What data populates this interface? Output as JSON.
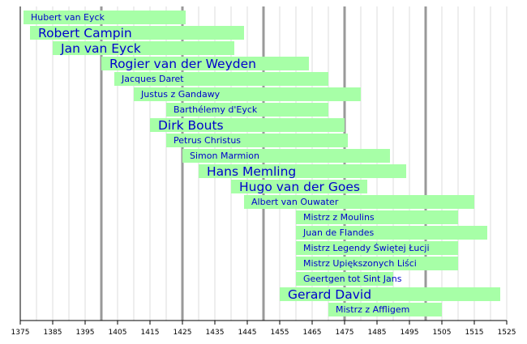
{
  "chart_data": {
    "type": "bar",
    "orientation": "timeline",
    "title": "",
    "xlabel": "",
    "ylabel": "",
    "xlim": [
      1375,
      1525
    ],
    "x_ticks": [
      1375,
      1385,
      1395,
      1405,
      1415,
      1425,
      1435,
      1445,
      1455,
      1465,
      1475,
      1485,
      1495,
      1505,
      1515,
      1525
    ],
    "major_gridlines": [
      1400,
      1425,
      1450,
      1475,
      1500
    ],
    "minor_gridline_step": 5,
    "bar_color": "#a7ffa7",
    "label_color": "#0000cc",
    "grid_major_color": "#999999",
    "grid_minor_color": "#dddddd",
    "bars": [
      {
        "name": "Hubert van Eyck",
        "start": 1376,
        "end": 1426,
        "emphasis": "small"
      },
      {
        "name": "Robert Campin",
        "start": 1378,
        "end": 1444,
        "emphasis": "large"
      },
      {
        "name": "Jan van Eyck",
        "start": 1385,
        "end": 1441,
        "emphasis": "large"
      },
      {
        "name": "Rogier van der Weyden",
        "start": 1400,
        "end": 1464,
        "emphasis": "large"
      },
      {
        "name": "Jacques Daret",
        "start": 1404,
        "end": 1470,
        "emphasis": "small"
      },
      {
        "name": "Justus z Gandawy",
        "start": 1410,
        "end": 1480,
        "emphasis": "small"
      },
      {
        "name": "Barthélemy d'Eyck",
        "start": 1420,
        "end": 1470,
        "emphasis": "small"
      },
      {
        "name": "Dirk Bouts",
        "start": 1415,
        "end": 1475,
        "emphasis": "large"
      },
      {
        "name": "Petrus Christus",
        "start": 1420,
        "end": 1476,
        "emphasis": "small"
      },
      {
        "name": "Simon Marmion",
        "start": 1425,
        "end": 1489,
        "emphasis": "small"
      },
      {
        "name": "Hans Memling",
        "start": 1430,
        "end": 1494,
        "emphasis": "large"
      },
      {
        "name": "Hugo van der Goes",
        "start": 1440,
        "end": 1482,
        "emphasis": "large"
      },
      {
        "name": "Albert van Ouwater",
        "start": 1444,
        "end": 1515,
        "emphasis": "small"
      },
      {
        "name": "Mistrz z Moulins",
        "start": 1460,
        "end": 1510,
        "emphasis": "small"
      },
      {
        "name": "Juan de Flandes",
        "start": 1460,
        "end": 1519,
        "emphasis": "small"
      },
      {
        "name": "Mistrz Legendy Świętej Łucji",
        "start": 1460,
        "end": 1510,
        "emphasis": "small"
      },
      {
        "name": "Mistrz Upiększonych Liści",
        "start": 1460,
        "end": 1510,
        "emphasis": "small"
      },
      {
        "name": "Geertgen tot Sint Jans",
        "start": 1460,
        "end": 1490,
        "emphasis": "small"
      },
      {
        "name": "Gerard David",
        "start": 1455,
        "end": 1523,
        "emphasis": "large"
      },
      {
        "name": "Mistrz z Affligem",
        "start": 1470,
        "end": 1505,
        "emphasis": "small"
      }
    ]
  }
}
